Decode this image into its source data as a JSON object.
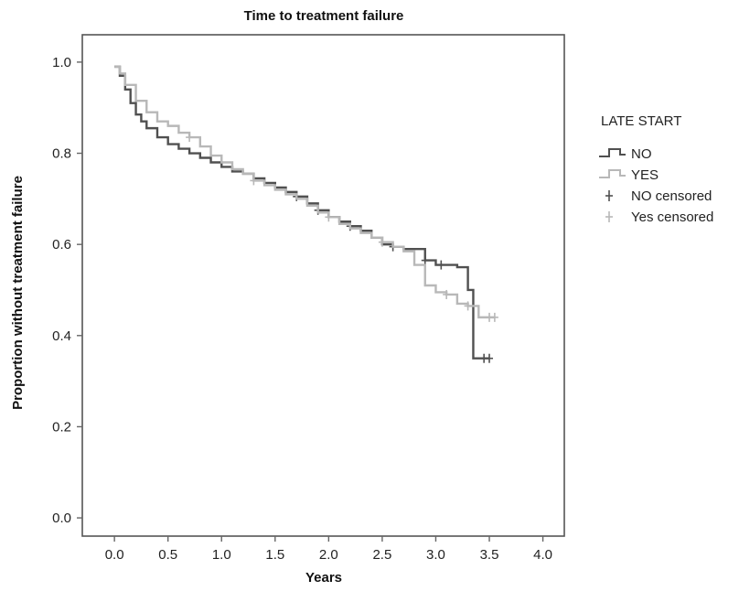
{
  "chart_data": {
    "type": "line",
    "subtype": "step (Kaplan-Meier survival)",
    "title": "Time to treatment failure",
    "xlabel": "Years",
    "ylabel": "Proportion without treatment failure",
    "xlim": [
      -0.3,
      4.2
    ],
    "ylim": [
      -0.04,
      1.06
    ],
    "x_ticks": [
      0.0,
      0.5,
      1.0,
      1.5,
      2.0,
      2.5,
      3.0,
      3.5,
      4.0
    ],
    "x_tick_labels": [
      "0.0",
      "0.5",
      "1.0",
      "1.5",
      "2.0",
      "2.5",
      "3.0",
      "3.5",
      "4.0"
    ],
    "y_ticks": [
      0.0,
      0.2,
      0.4,
      0.6,
      0.8,
      1.0
    ],
    "y_tick_labels": [
      "0.0",
      "0.2",
      "0.4",
      "0.6",
      "0.8",
      "1.0"
    ],
    "grid": false,
    "legend": {
      "title": "LATE START",
      "placement": "right",
      "entries": [
        {
          "label": "NO",
          "marker": "line"
        },
        {
          "label": "YES",
          "marker": "line"
        },
        {
          "label": "NO censored",
          "marker": "cross"
        },
        {
          "label": "Yes censored",
          "marker": "cross"
        }
      ]
    },
    "series": [
      {
        "name": "NO",
        "color": "#505050",
        "x": [
          0.0,
          0.05,
          0.1,
          0.15,
          0.2,
          0.25,
          0.3,
          0.4,
          0.5,
          0.6,
          0.7,
          0.8,
          0.9,
          1.0,
          1.1,
          1.2,
          1.3,
          1.4,
          1.5,
          1.6,
          1.7,
          1.8,
          1.9,
          2.0,
          2.1,
          2.2,
          2.3,
          2.4,
          2.5,
          2.6,
          2.7,
          2.8,
          2.9,
          3.0,
          3.1,
          3.2,
          3.3,
          3.35,
          3.4,
          3.5
        ],
        "y": [
          0.99,
          0.97,
          0.94,
          0.91,
          0.885,
          0.87,
          0.855,
          0.835,
          0.82,
          0.81,
          0.8,
          0.79,
          0.78,
          0.77,
          0.76,
          0.755,
          0.745,
          0.735,
          0.725,
          0.715,
          0.705,
          0.69,
          0.675,
          0.66,
          0.65,
          0.64,
          0.63,
          0.615,
          0.6,
          0.595,
          0.59,
          0.59,
          0.565,
          0.555,
          0.555,
          0.55,
          0.5,
          0.35,
          0.35,
          0.35
        ],
        "censored_x": [
          1.7,
          1.9,
          2.2,
          2.6,
          2.9,
          3.05,
          3.45,
          3.5
        ],
        "censored_y": [
          0.705,
          0.675,
          0.64,
          0.595,
          0.565,
          0.555,
          0.35,
          0.35
        ]
      },
      {
        "name": "YES",
        "color": "#b8b8b8",
        "x": [
          0.0,
          0.05,
          0.1,
          0.2,
          0.3,
          0.4,
          0.5,
          0.6,
          0.7,
          0.8,
          0.9,
          1.0,
          1.1,
          1.2,
          1.3,
          1.4,
          1.5,
          1.6,
          1.7,
          1.8,
          1.9,
          2.0,
          2.1,
          2.2,
          2.3,
          2.4,
          2.5,
          2.6,
          2.7,
          2.8,
          2.9,
          3.0,
          3.1,
          3.2,
          3.3,
          3.4,
          3.5,
          3.55
        ],
        "y": [
          0.99,
          0.975,
          0.95,
          0.915,
          0.89,
          0.87,
          0.86,
          0.845,
          0.835,
          0.815,
          0.795,
          0.78,
          0.765,
          0.755,
          0.74,
          0.73,
          0.72,
          0.71,
          0.7,
          0.685,
          0.67,
          0.66,
          0.645,
          0.635,
          0.625,
          0.615,
          0.605,
          0.595,
          0.585,
          0.555,
          0.51,
          0.495,
          0.49,
          0.47,
          0.465,
          0.44,
          0.44,
          0.44
        ],
        "censored_x": [
          0.7,
          1.3,
          2.0,
          2.5,
          3.1,
          3.3,
          3.5,
          3.55
        ],
        "censored_y": [
          0.835,
          0.74,
          0.66,
          0.605,
          0.49,
          0.465,
          0.44,
          0.44
        ]
      }
    ]
  }
}
